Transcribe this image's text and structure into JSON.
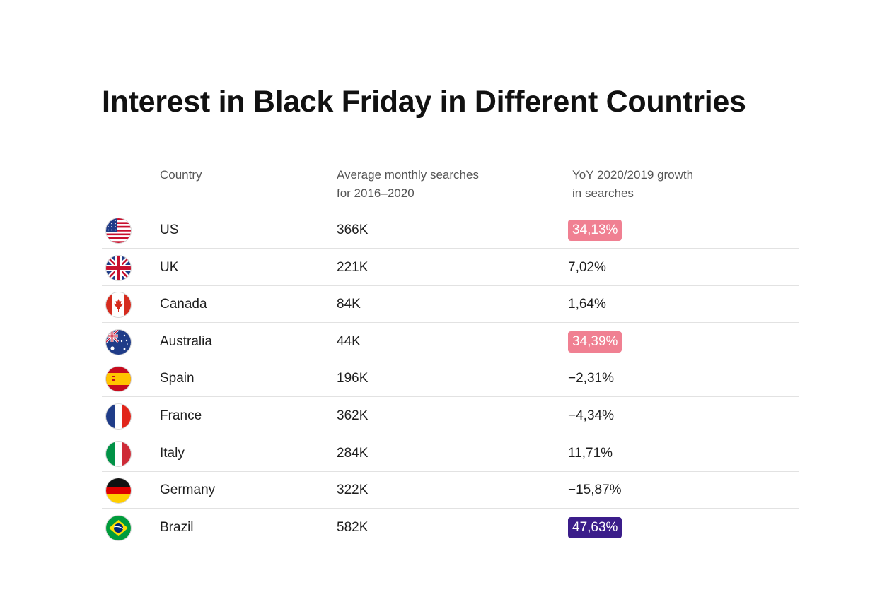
{
  "title": "Interest in Black Friday in Different Countries",
  "headers": {
    "country": "Country",
    "avg": "Average monthly searches\nfor 2016–2020",
    "yoy": "YoY 2020/2019 growth\nin searches"
  },
  "colors": {
    "highlight_pink": "#f08092",
    "highlight_purple": "#3b1d8a",
    "divider": "#e2e2e2"
  },
  "chart_data": {
    "type": "table",
    "title": "Interest in Black Friday in Different Countries",
    "columns": [
      "Country",
      "Average monthly searches for 2016–2020",
      "YoY 2020/2019 growth in searches"
    ],
    "rows": [
      {
        "country": "US",
        "flag": "us-flag-icon",
        "avg": "366K",
        "yoy": "34,13%",
        "highlight": "pink"
      },
      {
        "country": "UK",
        "flag": "uk-flag-icon",
        "avg": "221K",
        "yoy": "7,02%",
        "highlight": ""
      },
      {
        "country": "Canada",
        "flag": "canada-flag-icon",
        "avg": "84K",
        "yoy": "1,64%",
        "highlight": ""
      },
      {
        "country": "Australia",
        "flag": "australia-flag-icon",
        "avg": "44K",
        "yoy": "34,39%",
        "highlight": "pink"
      },
      {
        "country": "Spain",
        "flag": "spain-flag-icon",
        "avg": "196K",
        "yoy": "−2,31%",
        "highlight": ""
      },
      {
        "country": "France",
        "flag": "france-flag-icon",
        "avg": "362K",
        "yoy": "−4,34%",
        "highlight": ""
      },
      {
        "country": "Italy",
        "flag": "italy-flag-icon",
        "avg": "284K",
        "yoy": "11,71%",
        "highlight": ""
      },
      {
        "country": "Germany",
        "flag": "germany-flag-icon",
        "avg": "322K",
        "yoy": "−15,87%",
        "highlight": ""
      },
      {
        "country": "Brazil",
        "flag": "brazil-flag-icon",
        "avg": "582K",
        "yoy": "47,63%",
        "highlight": "purple"
      }
    ]
  }
}
